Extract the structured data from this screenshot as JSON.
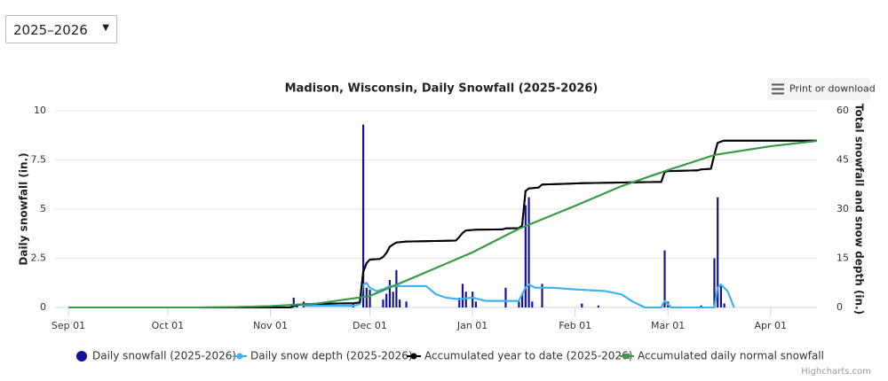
{
  "selector": {
    "value": "2025–2026"
  },
  "chart_data": {
    "type": "line",
    "title": "Madison, Wisconsin, Daily Snowfall (2025-2026)",
    "menu_button": "Print or download",
    "credits": "Highcharts.com",
    "y_label": "Daily snowfall (in.)",
    "y2_label": "Total snowfall and snow depth (in.)",
    "xlim": [
      "Sep 01",
      "Apr 15"
    ],
    "xticks": [
      "Sep 01",
      "Oct 01",
      "Nov 01",
      "Dec 01",
      "Jan 01",
      "Feb 01",
      "Mar 01",
      "Apr 01"
    ],
    "ylim": [
      0,
      10
    ],
    "yticks": [
      0,
      2.5,
      5,
      7.5,
      10
    ],
    "y2lim": [
      0,
      60
    ],
    "y2ticks": [
      0,
      15,
      30,
      45,
      60
    ],
    "grid": true,
    "series": [
      {
        "name": "Daily snowfall (2025-2026)",
        "type": "bar",
        "color": "#14149a",
        "x": [
          "Nov 08",
          "Nov 09",
          "Nov 11",
          "Nov 26",
          "Nov 29",
          "Nov 30",
          "Dec 01",
          "Dec 05",
          "Dec 06",
          "Dec 07",
          "Dec 08",
          "Dec 09",
          "Dec 10",
          "Dec 12",
          "Dec 28",
          "Dec 29",
          "Dec 30",
          "Jan 01",
          "Jan 02",
          "Jan 11",
          "Jan 15",
          "Jan 16",
          "Jan 17",
          "Jan 18",
          "Jan 19",
          "Jan 22",
          "Feb 03",
          "Feb 08",
          "Feb 28",
          "Mar 01",
          "Mar 11",
          "Mar 15",
          "Mar 16",
          "Mar 17",
          "Mar 18"
        ],
        "values": [
          0.5,
          0.2,
          0.3,
          0.2,
          9.3,
          1,
          0.9,
          0.4,
          0.7,
          1.4,
          0.8,
          1.9,
          0.4,
          0.3,
          0.5,
          1.2,
          0.8,
          0.8,
          0.3,
          1,
          0.3,
          0.7,
          5.2,
          5.6,
          0.3,
          1.2,
          0.2,
          0.1,
          2.9,
          0.3,
          0.1,
          2.5,
          5.6,
          1.2,
          0.2
        ]
      },
      {
        "name": "Daily snow depth (2025-2026)",
        "type": "line",
        "axis": "y2",
        "color": "#3fb1f0",
        "x": [
          "Sep 01",
          "Nov 08",
          "Nov 09",
          "Nov 12",
          "Nov 26",
          "Nov 28",
          "Nov 29",
          "Nov 30",
          "Dec 01",
          "Dec 03",
          "Dec 05",
          "Dec 07",
          "Dec 12",
          "Dec 18",
          "Dec 21",
          "Dec 24",
          "Dec 28",
          "Jan 01",
          "Jan 05",
          "Jan 15",
          "Jan 17",
          "Jan 18",
          "Jan 20",
          "Jan 25",
          "Feb 01",
          "Feb 10",
          "Feb 15",
          "Feb 18",
          "Feb 22",
          "Feb 27",
          "Feb 28",
          "Mar 02",
          "Mar 15",
          "Mar 16",
          "Mar 17",
          "Mar 19",
          "Mar 21"
        ],
        "values": [
          0,
          0,
          1,
          0.5,
          0.5,
          1,
          7,
          7.5,
          6,
          5,
          5.5,
          6.5,
          6.5,
          6.5,
          4,
          3,
          2.5,
          3,
          2,
          2,
          6,
          7,
          6,
          6,
          5.5,
          5,
          4,
          2,
          0,
          0,
          2,
          0,
          0,
          6,
          7,
          5,
          0
        ]
      },
      {
        "name": "Accumulated year to date (2025-2026)",
        "type": "line",
        "axis": "y2",
        "color": "#000000",
        "x": [
          "Sep 01",
          "Nov 07",
          "Nov 08",
          "Nov 09",
          "Nov 11",
          "Nov 26",
          "Nov 28",
          "Nov 29",
          "Nov 30",
          "Dec 01",
          "Dec 04",
          "Dec 05",
          "Dec 06",
          "Dec 07",
          "Dec 08",
          "Dec 09",
          "Dec 12",
          "Dec 27",
          "Dec 28",
          "Dec 29",
          "Dec 30",
          "Jan 02",
          "Jan 10",
          "Jan 11",
          "Jan 15",
          "Jan 16",
          "Jan 17",
          "Jan 18",
          "Jan 21",
          "Jan 22",
          "Feb 03",
          "Feb 27",
          "Feb 28",
          "Mar 01",
          "Mar 10",
          "Mar 11",
          "Mar 14",
          "Mar 15",
          "Mar 16",
          "Mar 17",
          "Mar 18",
          "Apr 15"
        ],
        "values": [
          0,
          0,
          0.5,
          0.7,
          1,
          1.3,
          1.5,
          10.8,
          13.5,
          14.6,
          14.8,
          15.4,
          16.6,
          18.5,
          19.2,
          19.8,
          20.1,
          20.4,
          21.5,
          22.7,
          23.5,
          23.7,
          23.8,
          24.1,
          24.2,
          25,
          35.5,
          36.3,
          36.6,
          37.5,
          37.9,
          38.3,
          41.3,
          41.6,
          41.8,
          42.1,
          42.3,
          46.5,
          50.2,
          50.6,
          50.9,
          50.9
        ]
      },
      {
        "name": "Accumulated daily normal snowfall",
        "type": "line",
        "axis": "y2",
        "color": "#3a9a48",
        "x": [
          "Sep 01",
          "Oct 10",
          "Oct 20",
          "Nov 01",
          "Nov 15",
          "Dec 01",
          "Dec 15",
          "Jan 01",
          "Jan 15",
          "Feb 01",
          "Feb 15",
          "Mar 01",
          "Mar 15",
          "Apr 01",
          "Apr 15"
        ],
        "values": [
          0,
          0,
          0.1,
          0.4,
          1.2,
          3.5,
          9.5,
          16.8,
          24,
          31,
          37,
          41.9,
          46.5,
          49.2,
          50.8
        ]
      }
    ]
  }
}
